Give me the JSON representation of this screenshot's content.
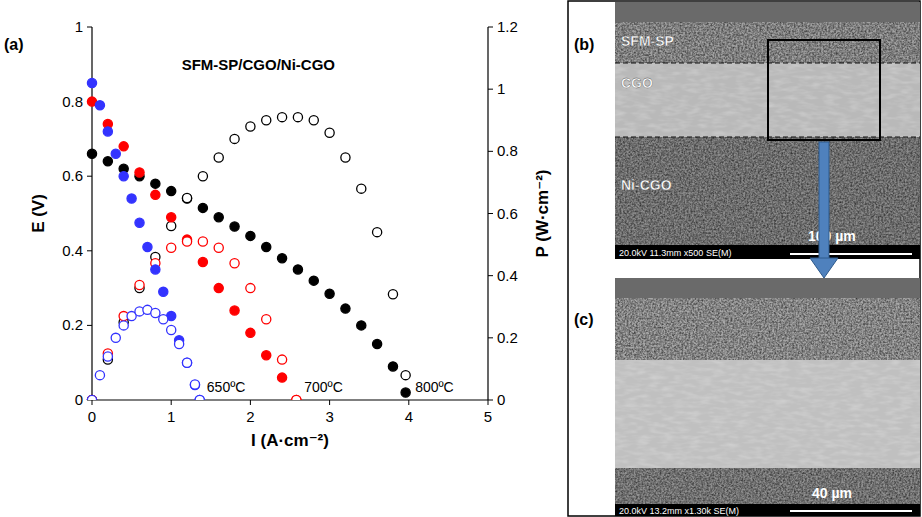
{
  "chart_data": {
    "type": "scatter",
    "title": "SFM-SP/CGO/Ni-CGO",
    "x_label": "I (A·cm⁻²)",
    "y_label": "E (V)",
    "y2_label": "P (W·cm⁻²)",
    "xlim": [
      0,
      5
    ],
    "xticks": [
      0,
      1,
      2,
      3,
      4,
      5
    ],
    "ylim": [
      0,
      1
    ],
    "yticks": [
      0,
      0.2,
      0.4,
      0.6,
      0.8,
      1
    ],
    "y2lim": [
      0,
      1.2
    ],
    "y2ticks": [
      0,
      0.2,
      0.4,
      0.6,
      0.8,
      1,
      1.2
    ],
    "grid": false,
    "series": [
      {
        "color": "#000000",
        "marker": "filled_circle",
        "x": [
          0,
          0.2,
          0.4,
          0.6,
          0.8,
          1.0,
          1.2,
          1.4,
          1.6,
          1.8,
          2.0,
          2.2,
          2.4,
          2.6,
          2.8,
          3.0,
          3.2,
          3.4,
          3.6,
          3.8,
          3.96
        ],
        "values": [
          0.66,
          0.64,
          0.62,
          0.6,
          0.58,
          0.56,
          0.54,
          0.515,
          0.49,
          0.465,
          0.44,
          0.41,
          0.38,
          0.35,
          0.32,
          0.285,
          0.245,
          0.2,
          0.15,
          0.09,
          0.02
        ]
      },
      {
        "color": "#000000",
        "marker": "open_circle",
        "axis": "y2",
        "x": [
          0,
          0.2,
          0.4,
          0.6,
          0.8,
          1.0,
          1.2,
          1.4,
          1.6,
          1.8,
          2.0,
          2.2,
          2.4,
          2.6,
          2.8,
          3.0,
          3.2,
          3.4,
          3.6,
          3.8,
          3.96
        ],
        "values": [
          0,
          0.13,
          0.25,
          0.36,
          0.46,
          0.56,
          0.65,
          0.72,
          0.78,
          0.84,
          0.88,
          0.9,
          0.91,
          0.91,
          0.9,
          0.86,
          0.78,
          0.68,
          0.54,
          0.34,
          0.08
        ]
      },
      {
        "color": "#ff0000",
        "marker": "filled_circle",
        "x": [
          0,
          0.2,
          0.4,
          0.6,
          0.8,
          1.0,
          1.2,
          1.4,
          1.6,
          1.8,
          2.0,
          2.2,
          2.4,
          2.58
        ],
        "values": [
          0.8,
          0.74,
          0.68,
          0.61,
          0.55,
          0.49,
          0.43,
          0.37,
          0.3,
          0.24,
          0.18,
          0.12,
          0.06,
          0
        ]
      },
      {
        "color": "#ff0000",
        "marker": "open_circle",
        "axis": "y2",
        "x": [
          0,
          0.2,
          0.4,
          0.6,
          0.8,
          1.0,
          1.2,
          1.4,
          1.6,
          1.8,
          2.0,
          2.2,
          2.4,
          2.58
        ],
        "values": [
          0,
          0.15,
          0.27,
          0.37,
          0.44,
          0.49,
          0.51,
          0.51,
          0.49,
          0.44,
          0.36,
          0.26,
          0.13,
          0
        ]
      },
      {
        "color": "#3333ff",
        "marker": "filled_circle",
        "x": [
          0,
          0.1,
          0.2,
          0.3,
          0.4,
          0.5,
          0.6,
          0.7,
          0.8,
          0.9,
          1.0,
          1.1,
          1.2,
          1.3,
          1.36
        ],
        "values": [
          0.85,
          0.79,
          0.72,
          0.66,
          0.6,
          0.54,
          0.475,
          0.41,
          0.35,
          0.29,
          0.225,
          0.16,
          0.1,
          0.04,
          0
        ]
      },
      {
        "color": "#3333ff",
        "marker": "open_circle",
        "axis": "y2",
        "x": [
          0,
          0.1,
          0.2,
          0.3,
          0.4,
          0.5,
          0.6,
          0.7,
          0.8,
          0.9,
          1.0,
          1.1,
          1.2,
          1.3,
          1.36
        ],
        "values": [
          0,
          0.08,
          0.14,
          0.2,
          0.24,
          0.27,
          0.285,
          0.29,
          0.28,
          0.26,
          0.225,
          0.18,
          0.12,
          0.05,
          0
        ]
      }
    ],
    "annotations": [
      {
        "text": "650ºC",
        "x": 1.45,
        "y": 0.035
      },
      {
        "text": "700ºC",
        "x": 2.68,
        "y": 0.035
      },
      {
        "text": "800ºC",
        "x": 4.08,
        "y": 0.035
      }
    ]
  },
  "figure": {
    "chart_label": "(a)",
    "micrographs": [
      {
        "label": "(b)",
        "layers": [
          "SFM-SP",
          "CGO",
          "Ni-CGO"
        ],
        "scale_bar": "100 µm",
        "info": "20.0kV 11.3mm x500 SE(M)"
      },
      {
        "label": "(c)",
        "scale_bar": "40 µm",
        "info": "20.0kV 13.2mm x1.30k SE(M)"
      }
    ]
  }
}
